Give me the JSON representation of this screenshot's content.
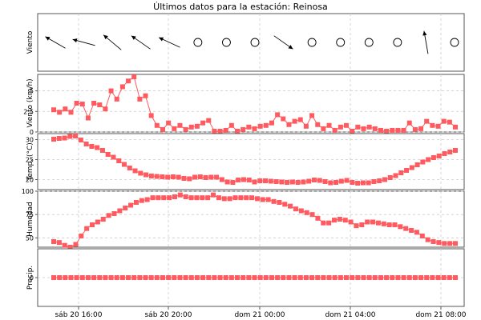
{
  "chart_data": {
    "type": "line",
    "title": "Últimos datos para la estación: Reinosa",
    "x_labels": [
      "sáb 20 16:00",
      "sáb 20 20:00",
      "dom 21 00:00",
      "dom 21 04:00",
      "dom 21 08:00"
    ],
    "grid": true,
    "colors": {
      "series": "#ff5a5f",
      "grid": "#cccccc",
      "frame": "#555555"
    },
    "panels": [
      {
        "name": "wind-direction",
        "ylabel": "Viento",
        "type": "wind-arrows",
        "arrows": [
          {
            "kind": "arrow",
            "angle_deg": 150
          },
          {
            "kind": "arrow",
            "angle_deg": 165
          },
          {
            "kind": "arrow",
            "angle_deg": 140
          },
          {
            "kind": "arrow",
            "angle_deg": 145
          },
          {
            "kind": "arrow",
            "angle_deg": 155
          },
          {
            "kind": "calm"
          },
          {
            "kind": "calm"
          },
          {
            "kind": "calm"
          },
          {
            "kind": "arrow",
            "angle_deg": -35
          },
          {
            "kind": "calm"
          },
          {
            "kind": "calm"
          },
          {
            "kind": "calm"
          },
          {
            "kind": "calm"
          },
          {
            "kind": "arrow",
            "angle_deg": 100
          },
          {
            "kind": "calm"
          }
        ]
      },
      {
        "name": "wind-speed",
        "ylabel": "Viento (km/h)",
        "ylim": [
          0,
          7
        ],
        "yticks": [
          "0",
          "2.5",
          "5"
        ],
        "ytick_values": [
          0,
          2.5,
          5
        ],
        "values": [
          2.7,
          2.4,
          2.8,
          2.4,
          3.5,
          3.4,
          1.7,
          3.5,
          3.3,
          2.8,
          5.0,
          4.0,
          5.5,
          6.2,
          6.7,
          4.0,
          4.4,
          2.0,
          0.8,
          0.3,
          1.1,
          0.4,
          0.8,
          0.3,
          0.6,
          0.7,
          1.1,
          1.4,
          0.1,
          0.1,
          0.2,
          0.8,
          0.1,
          0.3,
          0.6,
          0.4,
          0.7,
          0.8,
          1.1,
          2.1,
          1.6,
          0.9,
          1.3,
          1.5,
          0.7,
          2.0,
          0.9,
          0.4,
          0.8,
          0.2,
          0.6,
          0.8,
          0.1,
          0.6,
          0.4,
          0.6,
          0.4,
          0.2,
          0.1,
          0.2,
          0.2,
          0.2,
          1.1,
          0.3,
          0.4,
          1.3,
          0.8,
          0.7,
          1.3,
          1.2,
          0.6
        ]
      },
      {
        "name": "temperature",
        "ylabel": "Temp. (°C)",
        "ylim": [
          17.5,
          31.5
        ],
        "yticks": [
          "20",
          "25",
          "30"
        ],
        "ytick_values": [
          20,
          25,
          30
        ],
        "values": [
          30.1,
          30.3,
          30.4,
          30.8,
          30.9,
          29.9,
          28.9,
          28.3,
          28.0,
          27.3,
          26.3,
          25.6,
          24.7,
          23.8,
          22.9,
          22.2,
          21.6,
          21.2,
          20.9,
          20.8,
          20.7,
          20.6,
          20.7,
          20.6,
          20.3,
          20.2,
          20.6,
          20.7,
          20.5,
          20.6,
          20.6,
          20.0,
          19.4,
          19.3,
          19.9,
          20.0,
          19.9,
          19.4,
          19.7,
          19.7,
          19.6,
          19.5,
          19.4,
          19.3,
          19.4,
          19.3,
          19.4,
          19.6,
          19.9,
          19.8,
          19.5,
          19.2,
          19.3,
          19.6,
          19.8,
          19.3,
          19.1,
          19.2,
          19.2,
          19.5,
          19.7,
          20.0,
          20.5,
          21.0,
          21.7,
          22.3,
          23.0,
          23.7,
          24.4,
          25.0,
          25.5,
          25.9,
          26.5,
          26.9,
          27.3
        ]
      },
      {
        "name": "humidity",
        "ylabel": "Humedad",
        "ylim": [
          40,
          100
        ],
        "yticks": [
          "50",
          "75",
          "100"
        ],
        "ytick_values": [
          50,
          75,
          100
        ],
        "values": [
          46,
          45,
          42,
          40,
          43,
          52,
          60,
          64,
          67,
          70,
          74,
          76,
          79,
          82,
          85,
          88,
          90,
          91,
          93,
          93,
          93,
          93,
          94,
          96,
          94,
          93,
          93,
          93,
          93,
          96,
          93,
          92,
          92,
          93,
          93,
          93,
          93,
          92,
          91,
          91,
          89,
          88,
          86,
          84,
          81,
          79,
          77,
          75,
          71,
          66,
          66,
          69,
          70,
          69,
          67,
          63,
          64,
          67,
          67,
          66,
          65,
          64,
          64,
          62,
          60,
          58,
          56,
          52,
          48,
          46,
          45,
          44,
          44,
          44
        ]
      },
      {
        "name": "precipitation",
        "ylabel": "Precip.",
        "ylim": [
          -1,
          1
        ],
        "yticks": [
          "0"
        ],
        "ytick_values": [
          0
        ],
        "count": 71,
        "constant_value": 0
      }
    ]
  }
}
